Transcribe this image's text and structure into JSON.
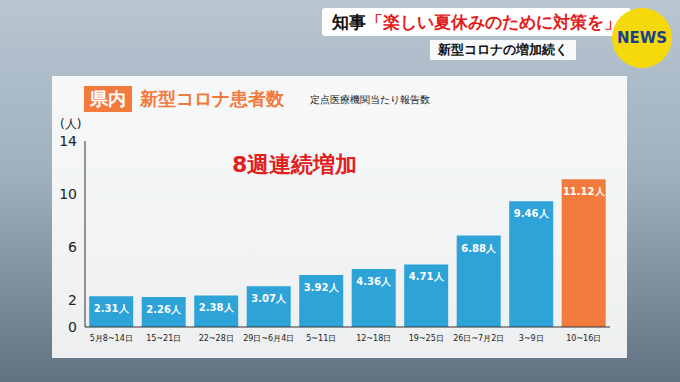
{
  "header": {
    "headline_speaker": "知事",
    "headline_quote": "「楽しい夏休みのために対策を」",
    "subtitle": "新型コロナの増加続く",
    "logo": "NEWS"
  },
  "chart_data": {
    "type": "bar",
    "title_tag": "県内",
    "title": "新型コロナ患者数",
    "subtitle": "定点医療機関当たり報告数",
    "y_label": "(人)",
    "annotation": "8週連続増加",
    "categories": [
      "5月8~14日",
      "15~21日",
      "22~28日",
      "29日~6月4日",
      "5~11日",
      "12~18日",
      "19~25日",
      "26日~7月2日",
      "3~9日",
      "10~16日"
    ],
    "values": [
      2.31,
      2.26,
      2.38,
      3.07,
      3.92,
      4.36,
      4.71,
      6.88,
      9.46,
      11.12
    ],
    "value_labels": [
      "2.31人",
      "2.26人",
      "2.38人",
      "3.07人",
      "3.92人",
      "4.36人",
      "4.71人",
      "6.88人",
      "9.46人",
      "11.12人"
    ],
    "colors": [
      "#2ea3d8",
      "#2ea3d8",
      "#2ea3d8",
      "#2ea3d8",
      "#2ea3d8",
      "#2ea3d8",
      "#2ea3d8",
      "#2ea3d8",
      "#2ea3d8",
      "#f27a3c"
    ],
    "ylim": [
      0,
      14
    ],
    "yticks": [
      0,
      2,
      6,
      10,
      14
    ],
    "grid": false,
    "data_labels": true
  }
}
